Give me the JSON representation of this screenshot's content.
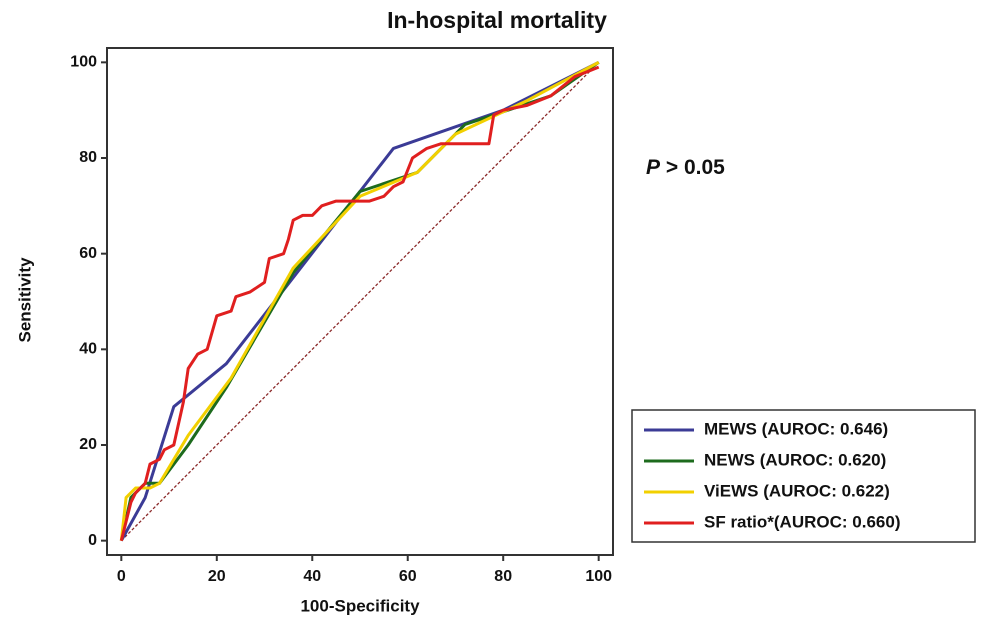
{
  "chart_data": {
    "type": "line",
    "title": "In-hospital mortality",
    "xlabel": "100-Specificity",
    "ylabel": "Sensitivity",
    "annotation": [
      "P",
      "> 0.05"
    ],
    "xlim": [
      -3,
      103
    ],
    "ylim": [
      -3,
      103
    ],
    "xticks": [
      0,
      20,
      40,
      60,
      80,
      100
    ],
    "yticks": [
      0,
      20,
      40,
      60,
      80,
      100
    ],
    "diagonal": true,
    "legend": "lower right",
    "series": [
      {
        "name": "MEWS (AUROC: 0.646)",
        "color": "#3b3b96",
        "x": [
          0,
          5,
          11,
          22,
          36,
          57,
          80,
          100
        ],
        "values": [
          0,
          9,
          28,
          37,
          55,
          82,
          90,
          100
        ]
      },
      {
        "name": "NEWS (AUROC: 0.620)",
        "color": "#1d6b1d",
        "x": [
          0,
          2,
          5,
          8,
          14,
          22,
          36,
          50,
          62,
          72,
          90,
          100
        ],
        "values": [
          0,
          9,
          12,
          12,
          20,
          32,
          56,
          73,
          77,
          87,
          93,
          100
        ]
      },
      {
        "name": "ViEWS (AUROC: 0.622)",
        "color": "#f2d000",
        "x": [
          0,
          1,
          3,
          6,
          8,
          14,
          23,
          36,
          50,
          62,
          70,
          85,
          100
        ],
        "values": [
          0,
          9,
          11,
          11,
          12,
          22,
          34,
          57,
          72,
          77,
          85,
          92,
          100
        ]
      },
      {
        "name": "SF ratio*(AUROC: 0.660)",
        "color": "#e01f1f",
        "x": [
          0,
          1,
          2,
          3,
          5,
          6,
          8,
          9,
          11,
          13,
          14,
          16,
          18,
          20,
          23,
          24,
          27,
          30,
          31,
          34,
          35,
          36,
          38,
          40,
          42,
          45,
          52,
          55,
          57,
          59,
          61,
          64,
          67,
          77,
          78,
          80,
          85,
          90,
          95,
          100
        ],
        "values": [
          0,
          4,
          8,
          10,
          12,
          16,
          17,
          19,
          20,
          29,
          36,
          39,
          40,
          47,
          48,
          51,
          52,
          54,
          59,
          60,
          63,
          67,
          68,
          68,
          70,
          71,
          71,
          72,
          74,
          75,
          80,
          82,
          83,
          83,
          89,
          90,
          91,
          93,
          97,
          99
        ]
      }
    ]
  }
}
